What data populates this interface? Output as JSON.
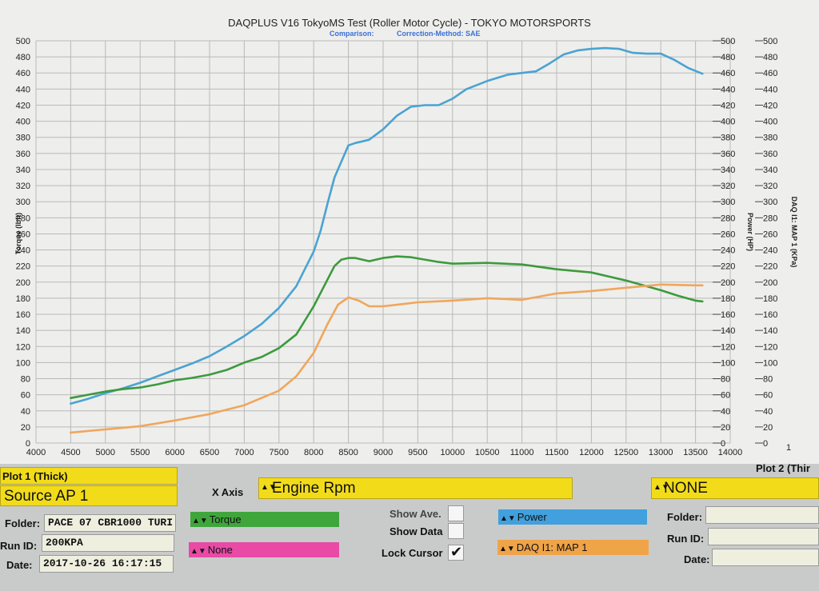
{
  "chart_data": {
    "type": "line",
    "title": "DAQPLUS V16 TokyoMS Test (Roller Motor Cycle) - TOKYO MOTORSPORTS",
    "subtitle_left": "Comparison:",
    "subtitle_right": "Correction-Method: SAE",
    "xlim": [
      4000,
      14000
    ],
    "x_ticks": [
      "4000",
      "4500",
      "5000",
      "5500",
      "6000",
      "6500",
      "7000",
      "7500",
      "8000",
      "8500",
      "9000",
      "9500",
      "10000",
      "10500",
      "11000",
      "11500",
      "12000",
      "12500",
      "13000",
      "13500",
      "14000"
    ],
    "ylim": [
      0,
      500
    ],
    "y_ticks": [
      "0",
      "20",
      "40",
      "60",
      "80",
      "100",
      "120",
      "140",
      "160",
      "180",
      "200",
      "220",
      "240",
      "260",
      "280",
      "300",
      "320",
      "340",
      "360",
      "380",
      "400",
      "420",
      "440",
      "460",
      "480",
      "500"
    ],
    "ylabel_left": "Torque (lbft)",
    "ylabel_mid": "Power (HP)",
    "ylabel_right": "DAQ I1: MAP 1 (KPa)",
    "right_axis_last_label": "1",
    "colors": {
      "blue": "#4aa3d2",
      "green": "#3c9a3e",
      "orange": "#f0a65c"
    },
    "series": [
      {
        "color": "#4aa3d2",
        "x": [
          4500,
          4750,
          5000,
          5250,
          5500,
          5750,
          6000,
          6250,
          6500,
          6750,
          7000,
          7250,
          7500,
          7750,
          8000,
          8100,
          8200,
          8300,
          8400,
          8500,
          8600,
          8700,
          8800,
          9000,
          9200,
          9400,
          9600,
          9800,
          10000,
          10200,
          10500,
          10800,
          11000,
          11200,
          11400,
          11600,
          11800,
          12000,
          12200,
          12400,
          12600,
          12800,
          13000,
          13200,
          13400,
          13600
        ],
        "values": [
          49,
          55,
          62,
          68,
          75,
          83,
          91,
          99,
          108,
          120,
          133,
          148,
          168,
          195,
          238,
          264,
          298,
          330,
          350,
          370,
          373,
          375,
          377,
          390,
          407,
          418,
          420,
          420,
          428,
          440,
          450,
          458,
          460,
          462,
          472,
          483,
          488,
          490,
          491,
          490,
          485,
          484,
          484,
          476,
          466,
          459
        ]
      },
      {
        "color": "#3c9a3e",
        "x": [
          4500,
          4750,
          5000,
          5250,
          5500,
          5750,
          6000,
          6250,
          6500,
          6750,
          7000,
          7250,
          7500,
          7750,
          8000,
          8150,
          8300,
          8400,
          8500,
          8600,
          8800,
          9000,
          9200,
          9400,
          9600,
          9800,
          10000,
          10500,
          11000,
          11500,
          12000,
          12500,
          13000,
          13250,
          13500,
          13600
        ],
        "values": [
          56,
          60,
          64,
          67,
          69,
          73,
          78,
          81,
          85,
          91,
          100,
          107,
          118,
          135,
          170,
          195,
          220,
          228,
          230,
          230,
          226,
          230,
          232,
          231,
          228,
          225,
          223,
          224,
          222,
          216,
          212,
          202,
          190,
          183,
          177,
          176
        ]
      },
      {
        "color": "#f0a65c",
        "x": [
          4500,
          5000,
          5500,
          6000,
          6500,
          7000,
          7500,
          7750,
          8000,
          8200,
          8350,
          8500,
          8650,
          8800,
          9000,
          9500,
          10000,
          10500,
          11000,
          11500,
          12000,
          12500,
          13000,
          13500,
          13600
        ],
        "values": [
          13,
          17,
          21,
          28,
          36,
          47,
          65,
          83,
          112,
          148,
          172,
          181,
          177,
          170,
          170,
          175,
          177,
          180,
          178,
          186,
          189,
          193,
          197,
          196,
          196
        ]
      }
    ]
  },
  "panel": {
    "plot1": {
      "header": "Plot 1 (Thick)",
      "source": "Source AP 1",
      "folder_label": "Folder:",
      "folder_value": "PACE 07 CBR1000 TURI",
      "runid_label": "Run ID:",
      "runid_value": "200KPA",
      "date_label": "Date:",
      "date_value": "2017-10-26 16:17:15"
    },
    "xaxis": {
      "label": "X Axis",
      "value": "Engine Rpm"
    },
    "channels": {
      "a": {
        "label": "Torque",
        "color": "#3fa63b"
      },
      "b": {
        "label": "None",
        "color": "#e84aa6"
      },
      "c": {
        "label": "Power",
        "color": "#41a0dd"
      },
      "d": {
        "label": "DAQ I1: MAP 1",
        "color": "#f0a448"
      }
    },
    "options": {
      "show_ave": "Show Ave.",
      "show_data": "Show Data",
      "lock_cursor": "Lock Cursor",
      "lock_check": "✔"
    },
    "plot2": {
      "header": "Plot 2 (Thir",
      "source": "NONE",
      "folder_label": "Folder:",
      "runid_label": "Run ID:",
      "date_label": "Date:"
    }
  }
}
